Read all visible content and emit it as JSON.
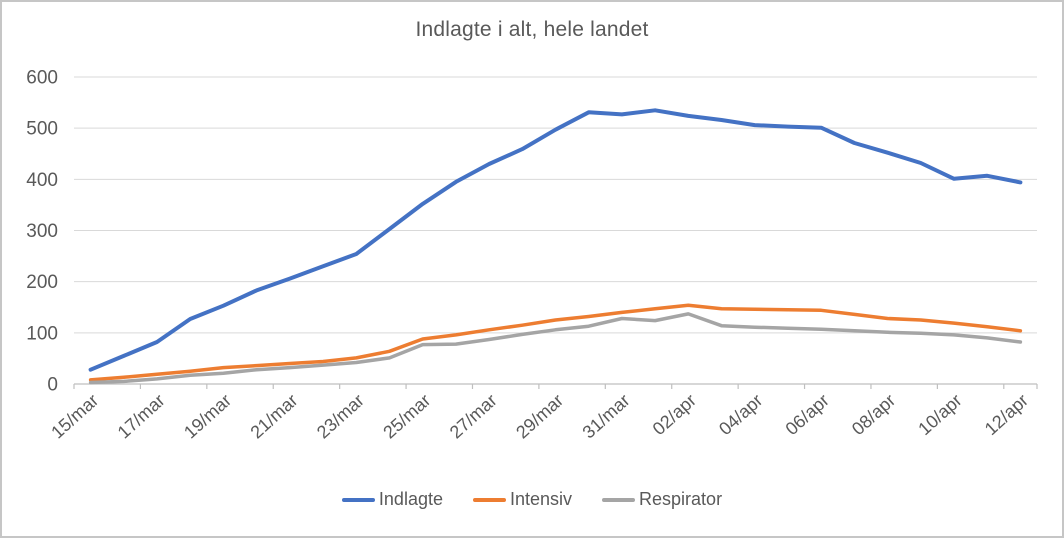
{
  "chart_data": {
    "type": "line",
    "title": "Indlagte i alt, hele landet",
    "x": [
      "15/mar",
      "16/mar",
      "17/mar",
      "18/mar",
      "19/mar",
      "20/mar",
      "21/mar",
      "22/mar",
      "23/mar",
      "24/mar",
      "25/mar",
      "26/mar",
      "27/mar",
      "28/mar",
      "29/mar",
      "30/mar",
      "31/mar",
      "01/apr",
      "02/apr",
      "03/apr",
      "04/apr",
      "05/apr",
      "06/apr",
      "07/apr",
      "08/apr",
      "09/apr",
      "10/apr",
      "11/apr",
      "12/apr"
    ],
    "x_tick_labels": [
      "15/mar",
      "17/mar",
      "19/mar",
      "21/mar",
      "23/mar",
      "25/mar",
      "27/mar",
      "29/mar",
      "31/mar",
      "02/apr",
      "04/apr",
      "06/apr",
      "08/apr",
      "10/apr",
      "12/apr"
    ],
    "series": [
      {
        "name": "Indlagte",
        "color": "#4472C4",
        "values": [
          28,
          55,
          82,
          127,
          153,
          183,
          206,
          230,
          254,
          303,
          352,
          395,
          430,
          459,
          497,
          531,
          527,
          535,
          524,
          516,
          506,
          503,
          501,
          471,
          452,
          432,
          401,
          407,
          394
        ]
      },
      {
        "name": "Intensiv",
        "color": "#ED7D31",
        "values": [
          8,
          13,
          19,
          25,
          32,
          36,
          40,
          44,
          51,
          64,
          88,
          96,
          106,
          115,
          125,
          132,
          140,
          147,
          154,
          147,
          146,
          145,
          144,
          136,
          128,
          125,
          119,
          112,
          104
        ]
      },
      {
        "name": "Respirator",
        "color": "#A5A5A5",
        "values": [
          3,
          5,
          10,
          17,
          21,
          28,
          32,
          37,
          42,
          51,
          77,
          78,
          87,
          97,
          106,
          113,
          128,
          124,
          137,
          114,
          111,
          109,
          107,
          104,
          101,
          99,
          96,
          90,
          82
        ]
      }
    ],
    "ylim": [
      0,
      600
    ],
    "yticks": [
      0,
      100,
      200,
      300,
      400,
      500,
      600
    ],
    "xlabel": "",
    "ylabel": "",
    "grid": "horizontal",
    "legend_position": "bottom",
    "colors": {
      "gridline": "#D9D9D9",
      "axis": "#BFBFBF",
      "tick_text": "#595959",
      "title_text": "#595959",
      "background": "#FFFFFF"
    }
  }
}
